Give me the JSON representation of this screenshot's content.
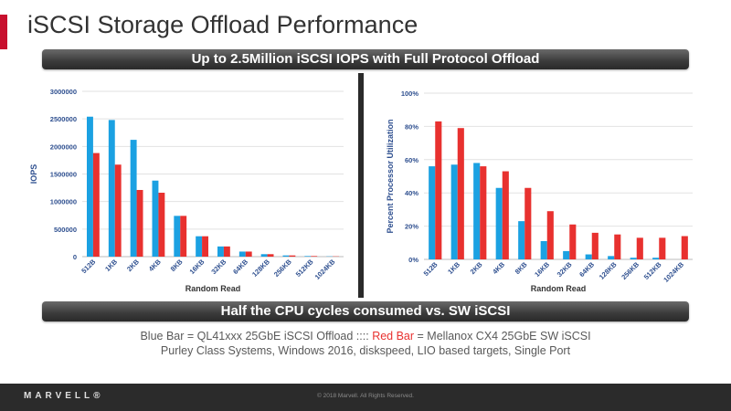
{
  "title": "iSCSI Storage Offload Performance",
  "banner_top": "Up to 2.5Million iSCSI IOPS with Full Protocol Offload",
  "banner_bottom": "Half the CPU cycles consumed vs. SW iSCSI",
  "legend": {
    "blue_part": "Blue Bar = QL41xxx 25GbE iSCSI Offload ::::",
    "red_part": "Red Bar",
    "rest_part": "= Mellanox CX4 25GbE SW iSCSI",
    "line2": "Purley Class Systems, Windows 2016, diskspeed, LIO based targets, Single Port"
  },
  "footer": {
    "logo": "MARVELL®",
    "copyright": "© 2018 Marvell.  All Rights Reserved."
  },
  "colors": {
    "blue": "#1ba1e2",
    "red": "#e8312f",
    "accent": "#c8102e",
    "axis_text": "#2e4f8f"
  },
  "chart_data": [
    {
      "type": "bar",
      "xlabel": "Random Read",
      "ylabel": "IOPS",
      "ylim": [
        0,
        3000000
      ],
      "yticks": [
        0,
        500000,
        1000000,
        1500000,
        2000000,
        2500000,
        3000000
      ],
      "ytick_labels": [
        "0",
        "500000",
        "1000000",
        "1500000",
        "2000000",
        "2500000",
        "3000000"
      ],
      "categories": [
        "512B",
        "1KB",
        "2KB",
        "4KB",
        "8KB",
        "16KB",
        "32KB",
        "64KB",
        "128KB",
        "256KB",
        "512KB",
        "1024KB"
      ],
      "series": [
        {
          "name": "QL41xxx 25GbE iSCSI Offload",
          "color": "#1ba1e2",
          "values": [
            2540000,
            2480000,
            2120000,
            1380000,
            740000,
            370000,
            185000,
            92000,
            45000,
            22000,
            11000,
            5000
          ]
        },
        {
          "name": "Mellanox CX4 25GbE SW iSCSI",
          "color": "#e8312f",
          "values": [
            1880000,
            1670000,
            1210000,
            1160000,
            740000,
            370000,
            185000,
            92000,
            45000,
            22000,
            11000,
            5000
          ]
        }
      ]
    },
    {
      "type": "bar",
      "xlabel": "Random Read",
      "ylabel": "Percent Processor Utilization",
      "ylim": [
        0,
        100
      ],
      "yticks": [
        0,
        20,
        40,
        60,
        80,
        100
      ],
      "ytick_labels": [
        "0%",
        "20%",
        "40%",
        "60%",
        "80%",
        "100%"
      ],
      "categories": [
        "512B",
        "1KB",
        "2KB",
        "4KB",
        "8KB",
        "16KB",
        "32KB",
        "64KB",
        "128KB",
        "256KB",
        "512KB",
        "1024KB"
      ],
      "series": [
        {
          "name": "QL41xxx 25GbE iSCSI Offload",
          "color": "#1ba1e2",
          "values": [
            56,
            57,
            58,
            43,
            23,
            11,
            5,
            3,
            2,
            1,
            1,
            0
          ]
        },
        {
          "name": "Mellanox CX4 25GbE SW iSCSI",
          "color": "#e8312f",
          "values": [
            83,
            79,
            56,
            53,
            43,
            29,
            21,
            16,
            15,
            13,
            13,
            14
          ]
        }
      ]
    }
  ]
}
